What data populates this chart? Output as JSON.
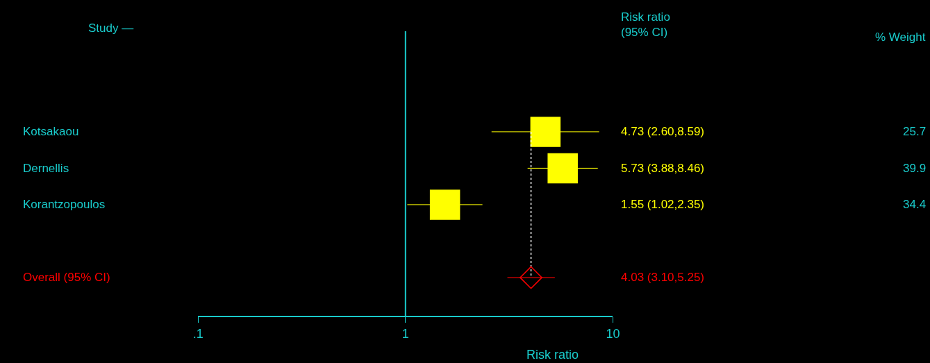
{
  "chart_data": {
    "type": "scatter",
    "orientation": "horizontal",
    "title": "Study —",
    "xlabel": "Risk ratio",
    "categories": [
      "Kotsakaou",
      "Dernellis",
      "Korantzopoulos",
      null,
      "Overall (95% CI)"
    ],
    "series": [
      {
        "color": "#ffff00",
        "marker": "square",
        "values": [
          4.73,
          5.73,
          1.55,
          null,
          null
        ],
        "errors": [
          [
            2.6,
            8.59
          ],
          [
            3.88,
            8.46
          ],
          [
            1.02,
            2.35
          ],
          null,
          null
        ]
      },
      {
        "color": "#ff0000",
        "marker": "diamond",
        "values": [
          null,
          null,
          null,
          null,
          4.03
        ],
        "errors": [
          null,
          null,
          null,
          null,
          [
            3.1,
            5.25
          ]
        ]
      }
    ],
    "log": "x",
    "xlim": [
      0.1,
      10
    ],
    "xticks": [
      {
        "value": 0.1,
        "label": ".1"
      },
      1,
      10
    ],
    "ref_lines": [
      {
        "axis": "x",
        "value": 1,
        "color": "#19cbcb",
        "line_style": "solid"
      },
      {
        "axis": "x",
        "value": 4.03,
        "color": "#ffffff",
        "line_style": "dotted"
      }
    ],
    "annotations": [
      "Risk ratio\n(95% CI)",
      "% Weight",
      "4.73 (2.60,8.59)",
      "5.73 (3.88,8.46)",
      "1.55 (1.02,2.35)",
      "4.03 (3.10,5.25)",
      "25.7",
      "39.9",
      "34.4"
    ]
  }
}
